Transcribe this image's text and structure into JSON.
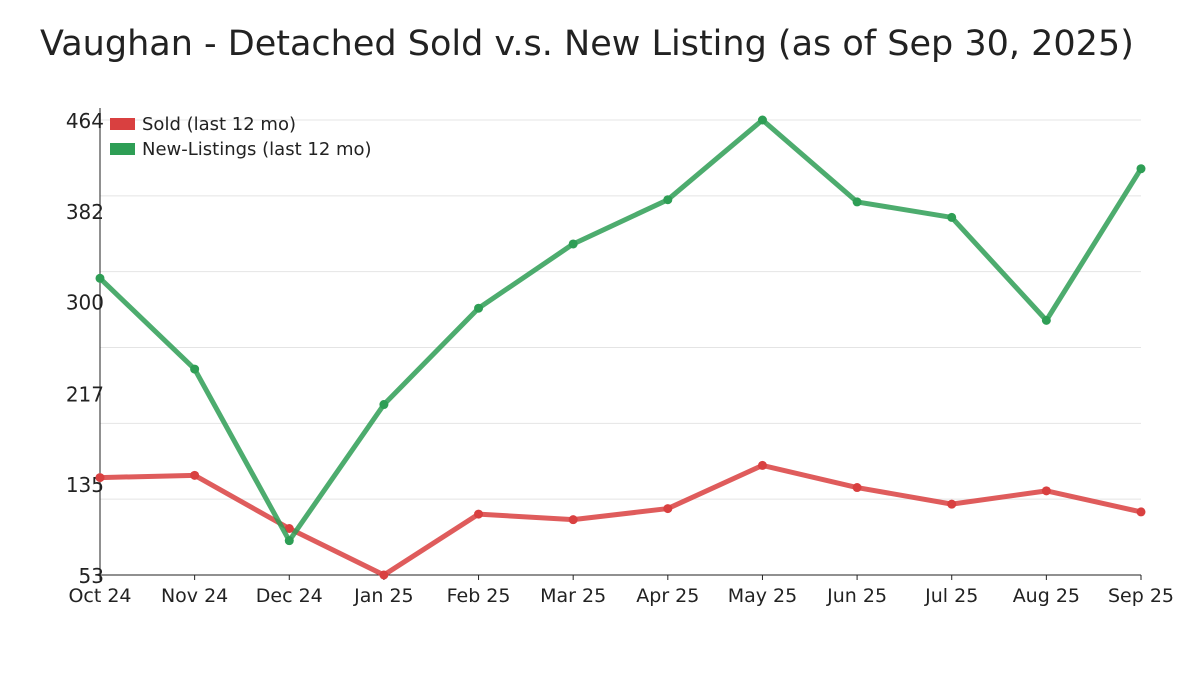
{
  "chart_data": {
    "type": "line",
    "title": "Vaughan - Detached Sold v.s. New Listing (as of Sep 30, 2025)",
    "xlabel": "",
    "ylabel": "",
    "categories": [
      "Oct 24",
      "Nov 24",
      "Dec 24",
      "Jan 25",
      "Feb 25",
      "Mar 25",
      "Apr 25",
      "May 25",
      "Jun 25",
      "Jul 25",
      "Aug 25",
      "Sep 25"
    ],
    "ylim": [
      53,
      464
    ],
    "yticks": [
      53,
      135,
      217,
      300,
      382,
      464
    ],
    "grid": true,
    "legend_position": "top-left",
    "series": [
      {
        "name": "Sold (last 12 mo)",
        "color": "#d94040",
        "values": [
          141,
          143,
          95,
          53,
          108,
          103,
          113,
          152,
          132,
          117,
          129,
          110
        ]
      },
      {
        "name": "New-Listings (last 12 mo)",
        "color": "#2e9e55",
        "values": [
          321,
          239,
          84,
          207,
          294,
          352,
          392,
          464,
          390,
          376,
          283,
          420
        ]
      }
    ]
  }
}
